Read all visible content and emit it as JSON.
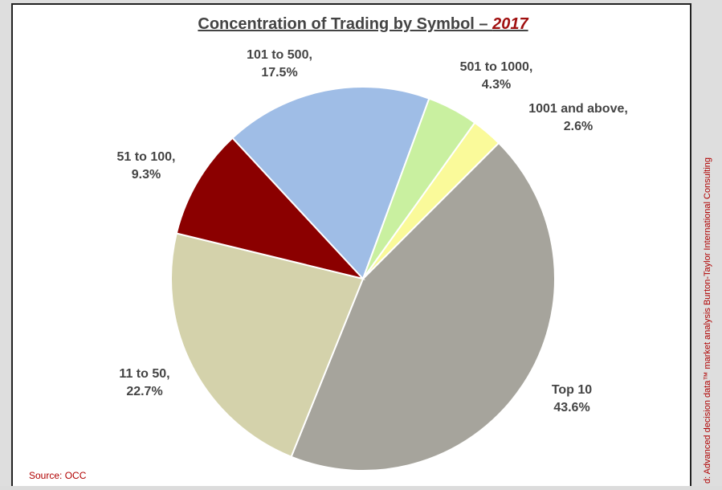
{
  "chart_data": {
    "type": "pie",
    "title": "Concentration of Trading by Symbol – ",
    "title_year": "2017",
    "categories": [
      "Top 10",
      "11 to 50,",
      "51 to 100,",
      "101 to 500,",
      "501 to 1000,",
      "1001 and above,"
    ],
    "values": [
      43.6,
      22.7,
      9.3,
      17.5,
      4.3,
      2.6
    ],
    "value_labels": [
      "43.6%",
      "22.7%",
      "9.3%",
      "17.5%",
      "4.3%",
      "2.6%"
    ],
    "colors": [
      "#a6a49c",
      "#d4d2ab",
      "#8b0000",
      "#9fbde6",
      "#c9f0a0",
      "#fafa9a"
    ],
    "source": "Source:  OCC",
    "side_note": "d:  Advanced decision data™ market analysis Burton-Taylor International Consulting"
  }
}
